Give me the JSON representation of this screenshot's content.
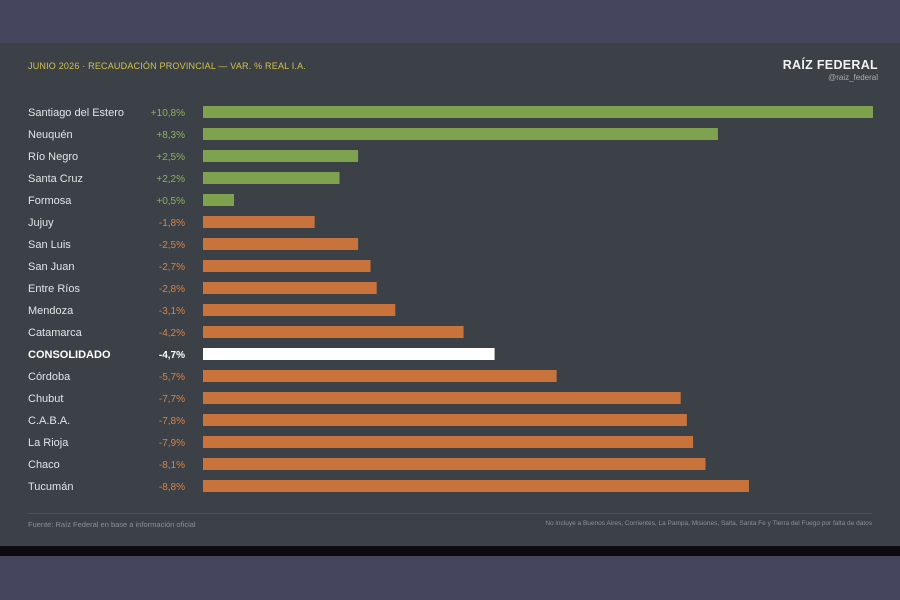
{
  "header": {
    "title": "JUNIO 2026 · RECAUDACIÓN PROVINCIAL — VAR. % REAL I.A."
  },
  "brand": {
    "name": "RAÍZ FEDERAL",
    "handle": "@raiz_federal"
  },
  "footer": {
    "source": "Fuente: Raíz Federal en base a información oficial",
    "note": "No incluye a Buenos Aires, Corrientes, La Pampa, Misiones, Salta, Santa Fe y Tierra del Fuego por falta de datos"
  },
  "colors": {
    "positive": "#7fa24e",
    "negative": "#c8733c",
    "consolidated": "#ffffff",
    "positive_label": "#8fb060",
    "negative_label": "#d98248"
  },
  "chart_data": {
    "type": "bar",
    "orientation": "horizontal",
    "scale": "absolute value of variation",
    "categories": [
      "Santiago del Estero",
      "Neuquén",
      "Río Negro",
      "Santa Cruz",
      "Formosa",
      "Jujuy",
      "San Luis",
      "San Juan",
      "Entre Ríos",
      "Mendoza",
      "Catamarca",
      "CONSOLIDADO",
      "Córdoba",
      "Chubut",
      "C.A.B.A.",
      "La Rioja",
      "Chaco",
      "Tucumán"
    ],
    "values": [
      10.8,
      8.3,
      2.5,
      2.2,
      0.5,
      -1.8,
      -2.5,
      -2.7,
      -2.8,
      -3.1,
      -4.2,
      -4.7,
      -5.7,
      -7.7,
      -7.8,
      -7.9,
      -8.1,
      -8.8
    ],
    "value_labels": [
      "+10,8%",
      "+8,3%",
      "+2,5%",
      "+2,2%",
      "+0,5%",
      "-1,8%",
      "-2,5%",
      "-2,7%",
      "-2,8%",
      "-3,1%",
      "-4,2%",
      "-4,7%",
      "-5,7%",
      "-7,7%",
      "-7,8%",
      "-7,9%",
      "-8,1%",
      "-8,8%"
    ],
    "highlight": "CONSOLIDADO",
    "xlim": [
      0,
      10.8
    ],
    "grid": false,
    "legend": "none"
  }
}
